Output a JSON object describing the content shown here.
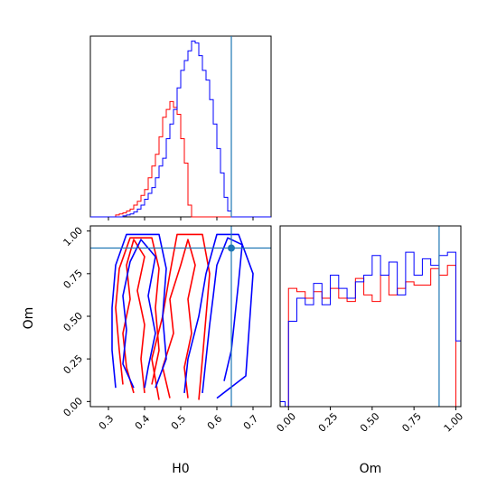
{
  "chart_data": {
    "type": "corner",
    "parameters": [
      "H0",
      "Om"
    ],
    "truth": {
      "H0": 0.64,
      "Om": 0.9
    },
    "series_colors": [
      "#ff0000",
      "#0000ff"
    ],
    "truth_color": "#1f77b4",
    "H0_axis": {
      "label": "H0",
      "xlim": [
        0.25,
        0.75
      ],
      "ticks": [
        0.3,
        0.4,
        0.5,
        0.6,
        0.7
      ],
      "tick_labels": [
        "0.3",
        "0.4",
        "0.5",
        "0.6",
        "0.7"
      ]
    },
    "Om_axis": {
      "label": "Om",
      "lim": [
        -0.03,
        1.03
      ],
      "ticks": [
        0.0,
        0.25,
        0.5,
        0.75,
        1.0
      ],
      "tick_labels": [
        "0.00",
        "0.25",
        "0.50",
        "0.75",
        "1.00"
      ]
    },
    "H0_hist": {
      "bin_edges": [
        0.25,
        0.26,
        0.27,
        0.28,
        0.29,
        0.3,
        0.31,
        0.32,
        0.33,
        0.34,
        0.35,
        0.36,
        0.37,
        0.38,
        0.39,
        0.4,
        0.41,
        0.42,
        0.43,
        0.44,
        0.45,
        0.46,
        0.47,
        0.48,
        0.49,
        0.5,
        0.51,
        0.52,
        0.53,
        0.54,
        0.55,
        0.56,
        0.57,
        0.58,
        0.59,
        0.6,
        0.61,
        0.62,
        0.63,
        0.64,
        0.65,
        0.66,
        0.67,
        0.68,
        0.69,
        0.7,
        0.71,
        0.72,
        0.73,
        0.74,
        0.75
      ],
      "ylim": [
        0,
        185
      ],
      "series": [
        {
          "color": "#ff0000",
          "values": [
            0,
            0,
            0,
            0,
            0,
            0,
            0,
            2,
            3,
            4,
            6,
            8,
            12,
            16,
            22,
            28,
            40,
            52,
            64,
            82,
            102,
            110,
            118,
            112,
            105,
            80,
            55,
            12,
            0,
            0,
            0,
            0,
            0,
            0,
            0,
            0,
            0,
            0,
            0,
            0,
            0,
            0,
            0,
            0,
            0,
            0,
            0,
            0,
            0,
            0
          ]
        },
        {
          "color": "#0000ff",
          "values": [
            0,
            0,
            0,
            0,
            0,
            0,
            0,
            0,
            0,
            1,
            2,
            3,
            5,
            8,
            12,
            18,
            24,
            30,
            40,
            52,
            60,
            80,
            95,
            110,
            132,
            150,
            160,
            170,
            180,
            178,
            165,
            150,
            140,
            120,
            95,
            70,
            45,
            20,
            6,
            0,
            0,
            0,
            0,
            0,
            0,
            0,
            0,
            0,
            0,
            0
          ]
        }
      ]
    },
    "Om_hist": {
      "xlim": [
        -0.05,
        1.03
      ],
      "ylim": [
        0,
        110
      ],
      "red_edges": [
        -0.05,
        0.0,
        0.05,
        0.1,
        0.15,
        0.2,
        0.25,
        0.3,
        0.35,
        0.4,
        0.45,
        0.5,
        0.55,
        0.6,
        0.65,
        0.7,
        0.75,
        0.8,
        0.85,
        0.9,
        0.95,
        1.0,
        1.03
      ],
      "red_values": [
        0,
        72,
        70,
        66,
        70,
        66,
        72,
        66,
        64,
        78,
        68,
        64,
        80,
        68,
        72,
        76,
        74,
        74,
        84,
        80,
        86,
        0
      ],
      "blue_edges": [
        -0.05,
        -0.02,
        0.0,
        0.05,
        0.1,
        0.15,
        0.2,
        0.25,
        0.3,
        0.35,
        0.4,
        0.45,
        0.5,
        0.55,
        0.6,
        0.65,
        0.7,
        0.75,
        0.8,
        0.85,
        0.9,
        0.95,
        1.0,
        1.03
      ],
      "blue_values": [
        3,
        0,
        52,
        66,
        62,
        75,
        62,
        80,
        72,
        66,
        76,
        80,
        92,
        80,
        88,
        68,
        94,
        80,
        90,
        86,
        92,
        94,
        40
      ]
    },
    "contours": {
      "red": [
        [
          [
            0.37,
            0.05
          ],
          [
            0.35,
            0.2
          ],
          [
            0.34,
            0.4
          ],
          [
            0.36,
            0.6
          ],
          [
            0.35,
            0.8
          ],
          [
            0.37,
            0.95
          ],
          [
            0.4,
            0.85
          ],
          [
            0.38,
            0.65
          ],
          [
            0.4,
            0.45
          ],
          [
            0.39,
            0.25
          ],
          [
            0.4,
            0.05
          ]
        ],
        [
          [
            0.47,
            0.02
          ],
          [
            0.45,
            0.2
          ],
          [
            0.48,
            0.4
          ],
          [
            0.47,
            0.6
          ],
          [
            0.5,
            0.8
          ],
          [
            0.52,
            0.95
          ],
          [
            0.54,
            0.8
          ],
          [
            0.52,
            0.6
          ],
          [
            0.53,
            0.4
          ],
          [
            0.51,
            0.2
          ],
          [
            0.52,
            0.02
          ]
        ],
        [
          [
            0.44,
            0.01
          ],
          [
            0.42,
            0.25
          ],
          [
            0.45,
            0.5
          ],
          [
            0.47,
            0.75
          ],
          [
            0.49,
            0.98
          ],
          [
            0.56,
            0.98
          ],
          [
            0.58,
            0.75
          ],
          [
            0.57,
            0.5
          ],
          [
            0.56,
            0.25
          ],
          [
            0.55,
            0.01
          ]
        ],
        [
          [
            0.34,
            0.1
          ],
          [
            0.33,
            0.3
          ],
          [
            0.32,
            0.55
          ],
          [
            0.33,
            0.78
          ],
          [
            0.36,
            0.96
          ],
          [
            0.42,
            0.96
          ],
          [
            0.44,
            0.78
          ],
          [
            0.43,
            0.55
          ],
          [
            0.44,
            0.3
          ],
          [
            0.42,
            0.1
          ]
        ]
      ],
      "blue": [
        [
          [
            0.37,
            0.08
          ],
          [
            0.34,
            0.22
          ],
          [
            0.35,
            0.42
          ],
          [
            0.34,
            0.62
          ],
          [
            0.36,
            0.82
          ],
          [
            0.39,
            0.95
          ],
          [
            0.43,
            0.85
          ],
          [
            0.41,
            0.62
          ],
          [
            0.43,
            0.4
          ],
          [
            0.41,
            0.2
          ],
          [
            0.4,
            0.08
          ]
        ],
        [
          [
            0.56,
            0.05
          ],
          [
            0.57,
            0.25
          ],
          [
            0.58,
            0.45
          ],
          [
            0.59,
            0.62
          ],
          [
            0.6,
            0.8
          ],
          [
            0.63,
            0.96
          ],
          [
            0.67,
            0.92
          ],
          [
            0.66,
            0.7
          ],
          [
            0.65,
            0.5
          ],
          [
            0.64,
            0.3
          ],
          [
            0.62,
            0.12
          ]
        ],
        [
          [
            0.51,
            0.05
          ],
          [
            0.52,
            0.25
          ],
          [
            0.55,
            0.5
          ],
          [
            0.57,
            0.75
          ],
          [
            0.6,
            0.98
          ],
          [
            0.66,
            0.98
          ],
          [
            0.7,
            0.75
          ],
          [
            0.69,
            0.45
          ],
          [
            0.68,
            0.15
          ],
          [
            0.6,
            0.02
          ]
        ],
        [
          [
            0.32,
            0.08
          ],
          [
            0.31,
            0.3
          ],
          [
            0.31,
            0.55
          ],
          [
            0.32,
            0.8
          ],
          [
            0.35,
            0.98
          ],
          [
            0.44,
            0.98
          ],
          [
            0.46,
            0.78
          ],
          [
            0.45,
            0.5
          ],
          [
            0.46,
            0.25
          ],
          [
            0.43,
            0.08
          ]
        ]
      ]
    }
  }
}
